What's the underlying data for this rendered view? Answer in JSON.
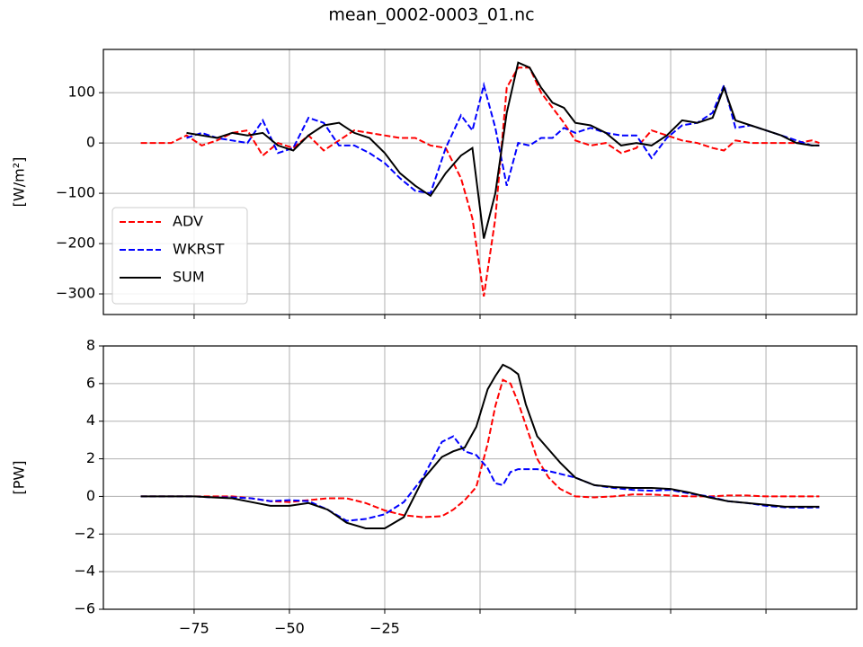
{
  "title": "mean_0002-0003_01.nc",
  "chart_data": [
    {
      "type": "line",
      "ylabel": "[W/m²]",
      "grid": true,
      "legend": "lower left",
      "xlim": [
        -98.8,
        98.8
      ],
      "ylim": [
        -341,
        186
      ],
      "xticks": [
        -75,
        -50,
        -25,
        0,
        25,
        50,
        75
      ],
      "yticks": [
        {
          "value": -300,
          "label": "−300"
        },
        {
          "value": -200,
          "label": "−200"
        },
        {
          "value": -100,
          "label": "−100"
        },
        0,
        100
      ],
      "x": [
        -89,
        -85,
        -81,
        -77,
        -73,
        -69,
        -65,
        -61,
        -57,
        -53,
        -49,
        -45,
        -41,
        -37,
        -33,
        -29,
        -25,
        -21,
        -17,
        -13,
        -9,
        -5,
        -2,
        1,
        4,
        7,
        10,
        13,
        16,
        19,
        22,
        25,
        29,
        33,
        37,
        41,
        45,
        49,
        53,
        57,
        61,
        64,
        67,
        71,
        75,
        79,
        83,
        87,
        89
      ],
      "series": [
        {
          "name": "ADV",
          "color": "#ff0000",
          "linestyle": "--",
          "values": [
            0,
            0,
            0,
            15,
            -5,
            5,
            20,
            25,
            -25,
            0,
            -10,
            15,
            -15,
            5,
            25,
            20,
            15,
            10,
            10,
            -5,
            -10,
            -70,
            -150,
            -305,
            -150,
            110,
            150,
            150,
            100,
            70,
            40,
            5,
            -5,
            0,
            -20,
            -10,
            25,
            15,
            5,
            0,
            -10,
            -15,
            5,
            0,
            0,
            0,
            0,
            5,
            0
          ]
        },
        {
          "name": "WKRST",
          "color": "#0000ff",
          "linestyle": "--",
          "values": [
            null,
            null,
            null,
            10,
            20,
            10,
            5,
            0,
            45,
            -20,
            -10,
            50,
            40,
            -5,
            -5,
            -20,
            -40,
            -70,
            -95,
            -100,
            -10,
            55,
            25,
            115,
            30,
            -85,
            0,
            -5,
            10,
            10,
            30,
            20,
            30,
            20,
            15,
            15,
            -30,
            10,
            35,
            40,
            60,
            115,
            30,
            35,
            25,
            15,
            5,
            -5,
            -5
          ]
        },
        {
          "name": "SUM",
          "color": "#000000",
          "linestyle": "-",
          "values": [
            null,
            null,
            null,
            20,
            15,
            10,
            20,
            15,
            20,
            -5,
            -15,
            15,
            35,
            40,
            20,
            10,
            -20,
            -60,
            -85,
            -105,
            -60,
            -25,
            -10,
            -190,
            -100,
            60,
            160,
            150,
            110,
            80,
            70,
            40,
            35,
            20,
            -5,
            0,
            -5,
            15,
            45,
            40,
            50,
            110,
            45,
            35,
            25,
            15,
            0,
            -5,
            -5
          ]
        }
      ]
    },
    {
      "type": "line",
      "ylabel": "[PW]",
      "grid": true,
      "xlim": [
        -98.8,
        98.8
      ],
      "ylim": [
        -6,
        8
      ],
      "xticks": [
        {
          "value": -75,
          "label": "−75"
        },
        {
          "value": -50,
          "label": "−50"
        },
        {
          "value": -25,
          "label": "−25"
        },
        0,
        25,
        50,
        75
      ],
      "yticks": [
        {
          "value": -6,
          "label": "−6"
        },
        {
          "value": -4,
          "label": "−4"
        },
        {
          "value": -2,
          "label": "−2"
        },
        0,
        2,
        4,
        6,
        8
      ],
      "x": [
        -89,
        -85,
        -80,
        -75,
        -70,
        -65,
        -60,
        -55,
        -50,
        -45,
        -40,
        -35,
        -30,
        -25,
        -20,
        -15,
        -10,
        -7,
        -4,
        -1,
        2,
        4,
        6,
        8,
        10,
        12,
        15,
        18,
        21,
        25,
        30,
        35,
        40,
        45,
        50,
        55,
        60,
        65,
        70,
        75,
        80,
        85,
        89
      ],
      "series": [
        {
          "name": "ADV",
          "color": "#ff0000",
          "linestyle": "--",
          "values": [
            0,
            0,
            0,
            0,
            0,
            0,
            -0.1,
            -0.25,
            -0.3,
            -0.2,
            -0.1,
            -0.1,
            -0.35,
            -0.75,
            -1.0,
            -1.1,
            -1.05,
            -0.7,
            -0.2,
            0.5,
            2.8,
            4.8,
            6.2,
            6.0,
            5.0,
            3.8,
            2.0,
            1.0,
            0.4,
            0.0,
            -0.05,
            0.0,
            0.1,
            0.1,
            0.05,
            0.0,
            0.0,
            0.05,
            0.05,
            0.0,
            0.0,
            0.0,
            0.0
          ]
        },
        {
          "name": "WKRST",
          "color": "#0000ff",
          "linestyle": "--",
          "values": [
            0,
            0,
            0,
            0,
            -0.05,
            -0.05,
            -0.1,
            -0.25,
            -0.2,
            -0.25,
            -0.7,
            -1.3,
            -1.2,
            -0.95,
            -0.3,
            1.0,
            2.9,
            3.2,
            2.4,
            2.2,
            1.5,
            0.7,
            0.6,
            1.3,
            1.45,
            1.45,
            1.45,
            1.35,
            1.2,
            1.0,
            0.6,
            0.45,
            0.35,
            0.3,
            0.35,
            0.15,
            0.0,
            -0.25,
            -0.35,
            -0.5,
            -0.58,
            -0.6,
            -0.58
          ]
        },
        {
          "name": "SUM",
          "color": "#000000",
          "linestyle": "-",
          "values": [
            0,
            0,
            0,
            0,
            -0.05,
            -0.1,
            -0.3,
            -0.5,
            -0.5,
            -0.35,
            -0.7,
            -1.4,
            -1.7,
            -1.7,
            -1.1,
            0.9,
            2.1,
            2.4,
            2.6,
            3.7,
            5.7,
            6.4,
            7.0,
            6.8,
            6.5,
            4.9,
            3.2,
            2.5,
            1.8,
            1.0,
            0.6,
            0.5,
            0.45,
            0.45,
            0.4,
            0.2,
            -0.05,
            -0.25,
            -0.35,
            -0.45,
            -0.55,
            -0.55,
            -0.55
          ]
        }
      ]
    }
  ]
}
